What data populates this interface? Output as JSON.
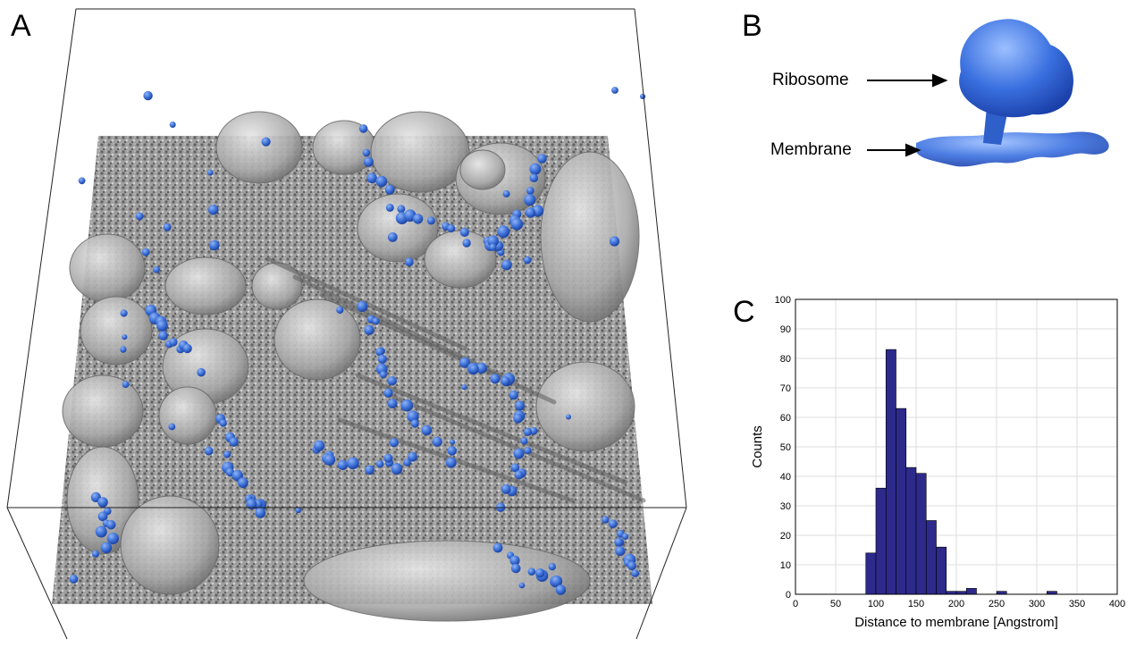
{
  "panels": {
    "a": {
      "letter": "A"
    },
    "b": {
      "letter": "B",
      "ribosome_label": "Ribosome",
      "membrane_label": "Membrane"
    },
    "c": {
      "letter": "C"
    }
  },
  "colors": {
    "ribosome_blue": "#3b6fd6",
    "membrane_gray": "#b9b9b9",
    "bar_fill": "#2d2a8c",
    "grid": "#dddddd"
  },
  "chart_data": {
    "type": "bar",
    "xlabel": "Distance to membrane [Angstrom]",
    "ylabel": "Counts",
    "xlim": [
      0,
      400
    ],
    "ylim": [
      0,
      100
    ],
    "xticks": [
      0,
      50,
      100,
      150,
      200,
      250,
      300,
      350,
      400
    ],
    "yticks": [
      0,
      10,
      20,
      30,
      40,
      50,
      60,
      70,
      80,
      90,
      100
    ],
    "grid": true,
    "bin_width": 12.5,
    "bins": [
      {
        "x": 87.5,
        "count": 14
      },
      {
        "x": 100,
        "count": 36
      },
      {
        "x": 112.5,
        "count": 83
      },
      {
        "x": 125,
        "count": 63
      },
      {
        "x": 137.5,
        "count": 43
      },
      {
        "x": 150,
        "count": 41
      },
      {
        "x": 162.5,
        "count": 25
      },
      {
        "x": 175,
        "count": 16
      },
      {
        "x": 187.5,
        "count": 1
      },
      {
        "x": 200,
        "count": 1
      },
      {
        "x": 212.5,
        "count": 2
      },
      {
        "x": 250,
        "count": 1
      },
      {
        "x": 312.5,
        "count": 1
      }
    ]
  }
}
